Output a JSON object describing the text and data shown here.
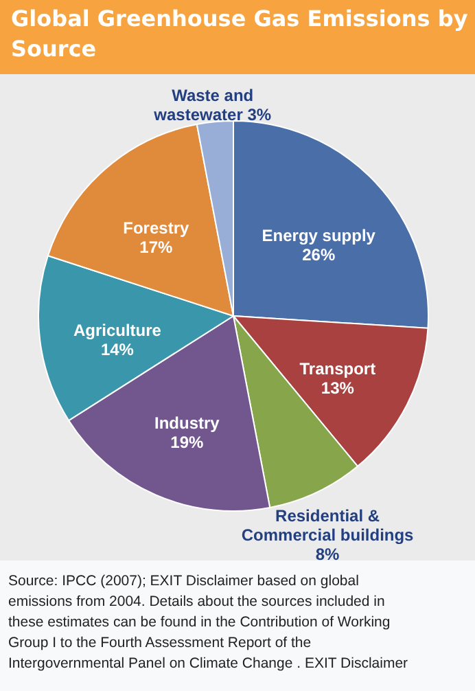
{
  "chart_data": {
    "type": "pie",
    "title": "Global Greenhouse Gas Emissions by Source",
    "categories": [
      "Energy supply",
      "Transport",
      "Residential & Commercial buildings",
      "Industry",
      "Agriculture",
      "Forestry",
      "Waste and wastewater"
    ],
    "values": [
      26,
      13,
      8,
      19,
      14,
      17,
      3
    ],
    "colors": [
      "#4a6fa8",
      "#a8413f",
      "#87a54b",
      "#72578f",
      "#3a97ab",
      "#e08a3c",
      "#98aed6"
    ],
    "value_labels": [
      "26%",
      "13%",
      "8%",
      "19%",
      "14%",
      "17%",
      "3%"
    ],
    "annotations": [
      "Source: IPCC (2007); EXIT Disclaimer based on global emissions from 2004. Details about the sources included in these estimates can be found in the Contribution of Working Group I to the Fourth Assessment Report of the Intergovernmental Panel on Climate Change . EXIT Disclaimer"
    ]
  }
}
